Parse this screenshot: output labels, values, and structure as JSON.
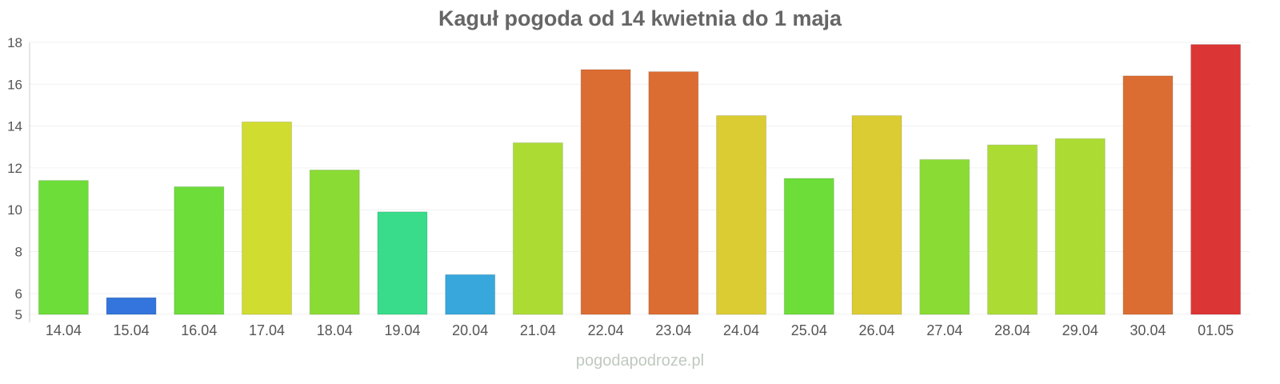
{
  "chart_data": {
    "type": "bar",
    "title": "Kaguł pogoda od 14 kwietnia do 1 maja",
    "xlabel": "",
    "ylabel": "",
    "ylim": [
      5,
      18
    ],
    "yticks": [
      5,
      6,
      8,
      10,
      12,
      14,
      16,
      18
    ],
    "grid": true,
    "categories": [
      "14.04",
      "15.04",
      "16.04",
      "17.04",
      "18.04",
      "19.04",
      "20.04",
      "21.04",
      "22.04",
      "23.04",
      "24.04",
      "25.04",
      "26.04",
      "27.04",
      "28.04",
      "29.04",
      "30.04",
      "01.05"
    ],
    "values": [
      11.4,
      5.8,
      11.1,
      14.2,
      11.9,
      9.9,
      6.9,
      13.2,
      16.7,
      16.6,
      14.5,
      11.5,
      14.5,
      12.4,
      13.1,
      13.4,
      16.4,
      17.9
    ],
    "colors": [
      "#6ddd3a",
      "#3375dc",
      "#6ddd3a",
      "#d0dc30",
      "#8adc34",
      "#38dc8a",
      "#37a7dc",
      "#acdc34",
      "#dc6d32",
      "#dc6d32",
      "#dccc33",
      "#6ddd3a",
      "#dccc33",
      "#8adc34",
      "#acdc34",
      "#acdc34",
      "#dc6d32",
      "#dc3535"
    ]
  },
  "source": "pogodapodroze.pl"
}
